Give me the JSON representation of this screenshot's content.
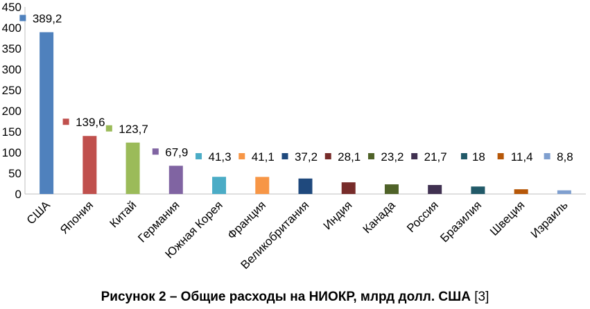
{
  "chart_data": {
    "type": "bar",
    "categories": [
      "США",
      "Япония",
      "Китай",
      "Германия",
      "Южная Корея",
      "Франция",
      "Великобритания",
      "Индия",
      "Канада",
      "Россия",
      "Бразилия",
      "Швеция",
      "Израиль"
    ],
    "values": [
      389.2,
      139.6,
      123.7,
      67.9,
      41.3,
      41.1,
      37.2,
      28.1,
      23.2,
      21.7,
      18,
      11.4,
      8.8
    ],
    "value_labels": [
      "389,2",
      "139,6",
      "123,7",
      "67,9",
      "41,3",
      "41,1",
      "37,2",
      "28,1",
      "23,2",
      "21,7",
      "18",
      "11,4",
      "8,8"
    ],
    "colors": [
      "#4f81bd",
      "#c0504d",
      "#9bbb59",
      "#8064a2",
      "#4bacc6",
      "#f79646",
      "#1f497d",
      "#772c2a",
      "#4f6228",
      "#403151",
      "#215968",
      "#b65708",
      "#7f9fcf"
    ],
    "ylim": [
      0,
      450
    ],
    "yticks": [
      0,
      50,
      100,
      150,
      200,
      250,
      300,
      350,
      400,
      450
    ],
    "grid": false,
    "legend": "none"
  },
  "caption": {
    "main": "Рисунок 2 – Общие расходы на НИОКР, млрд долл. США",
    "ref": "[3]"
  }
}
